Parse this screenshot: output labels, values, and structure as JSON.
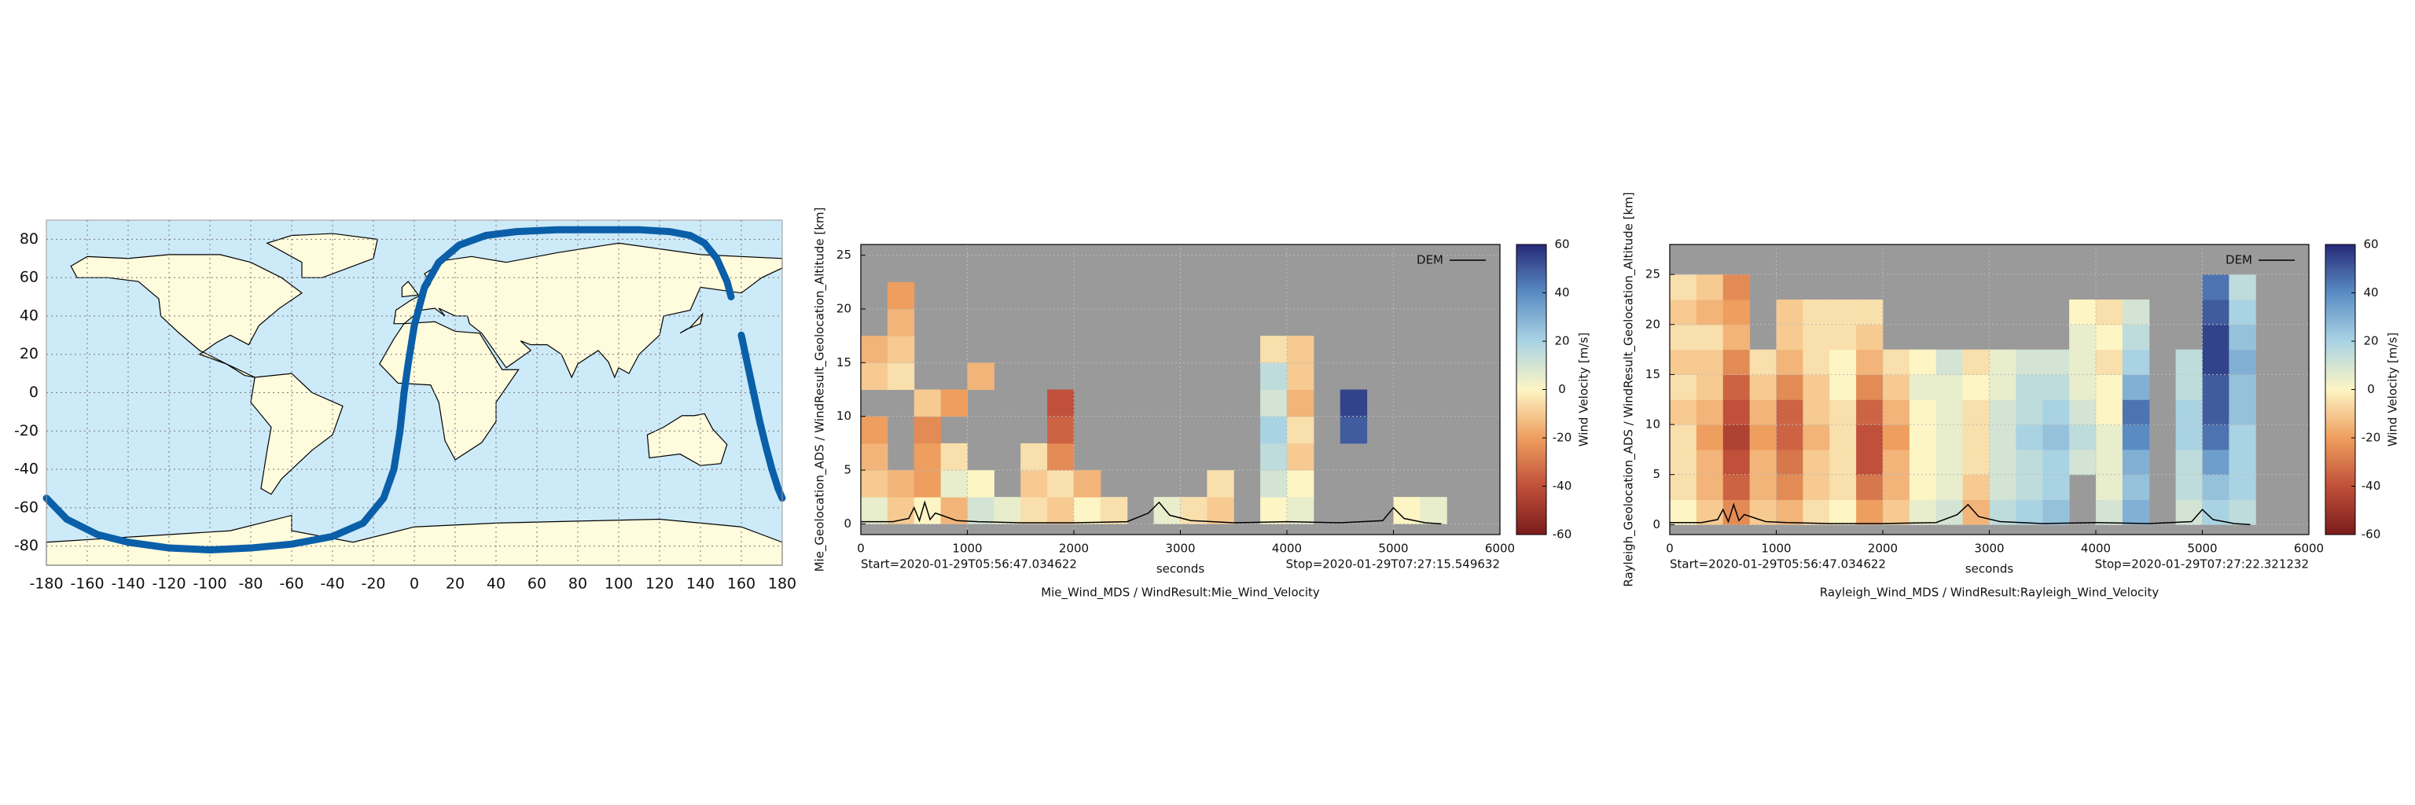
{
  "chart_data": [
    {
      "type": "map",
      "color": "#0a5fa8",
      "x": [
        -180,
        -170,
        -155,
        -140,
        -120,
        -100,
        -80,
        -60,
        -40,
        -25,
        -15,
        -10,
        -7,
        -5,
        -3,
        0,
        5,
        12,
        22,
        35,
        50,
        70,
        90,
        110,
        125,
        135,
        142,
        148,
        153,
        155,
        null,
        160,
        163,
        166,
        169,
        172,
        175,
        178,
        180
      ],
      "y": [
        -55,
        -66,
        -74,
        -78,
        -81,
        -82,
        -81,
        -79,
        -75,
        -68,
        -55,
        -40,
        -20,
        0,
        15,
        35,
        55,
        68,
        77,
        82,
        84,
        85,
        85,
        85,
        84,
        82,
        78,
        70,
        58,
        50,
        null,
        30,
        15,
        0,
        -15,
        -28,
        -40,
        -50,
        -55
      ],
      "xlim": [
        -180,
        180
      ],
      "ylim": [
        -90,
        90
      ],
      "xticks": [
        -180,
        -160,
        -140,
        -120,
        -100,
        -80,
        -60,
        -40,
        -20,
        0,
        20,
        40,
        60,
        80,
        100,
        120,
        140,
        160,
        180
      ],
      "yticks": [
        -80,
        -60,
        -40,
        -20,
        0,
        20,
        40,
        60,
        80
      ],
      "grid": true
    },
    {
      "type": "heatmap",
      "title": "Mie_Wind_MDS / WindResult:Mie_Wind_Velocity",
      "xlabel": "seconds",
      "ylabel": "Mie_Geolocation_ADS / WindResult_Geolocation_Altitude [km]",
      "annotations": [
        "Start=2020-01-29T05:56:47.034622",
        "Stop=2020-01-29T07:27:15.549632"
      ],
      "colorbar_label": "Wind Velocity [m/s]",
      "xlim": [
        0,
        6000
      ],
      "ylim": [
        -1,
        26
      ],
      "xticks": [
        0,
        1000,
        2000,
        3000,
        4000,
        5000,
        6000
      ],
      "yticks": [
        0,
        5,
        10,
        15,
        20,
        25
      ],
      "clim": [
        -60,
        60
      ],
      "cticks": [
        -60,
        -40,
        -20,
        0,
        20,
        40,
        60
      ],
      "colormap": [
        "#7a1c1c",
        "#c0503a",
        "#ee9e5e",
        "#fdf5c4",
        "#a9d3e3",
        "#5a8cc4",
        "#262a78"
      ],
      "x_edges": [
        0,
        250,
        500,
        750,
        1000,
        1250,
        1500,
        1750,
        2000,
        2250,
        2500,
        2750,
        3000,
        3250,
        3500,
        3750,
        4000,
        4250,
        4500,
        4750,
        5000,
        5250,
        5500
      ],
      "y_edges": [
        0,
        2.5,
        5,
        7.5,
        10,
        12.5,
        15,
        17.5,
        20,
        22.5
      ],
      "z": [
        [
          5,
          -10,
          0,
          -15,
          10,
          5,
          -5,
          -10,
          0,
          -5,
          null,
          5,
          -5,
          -10,
          null,
          0,
          5,
          null,
          null,
          null,
          0,
          5
        ],
        [
          -10,
          -15,
          -20,
          5,
          0,
          null,
          -10,
          -5,
          -15,
          null,
          null,
          null,
          null,
          -5,
          null,
          10,
          0,
          null,
          null,
          null,
          null,
          null
        ],
        [
          -15,
          null,
          -20,
          -5,
          null,
          null,
          -5,
          -25,
          null,
          null,
          null,
          null,
          null,
          null,
          null,
          15,
          -10,
          null,
          null,
          null,
          null,
          null
        ],
        [
          -20,
          null,
          -25,
          null,
          null,
          null,
          null,
          -35,
          null,
          null,
          null,
          null,
          null,
          null,
          null,
          20,
          -5,
          null,
          50,
          null,
          null,
          null
        ],
        [
          null,
          null,
          -10,
          -20,
          null,
          null,
          null,
          -40,
          null,
          null,
          null,
          null,
          null,
          null,
          null,
          10,
          -15,
          null,
          55,
          null,
          null,
          null
        ],
        [
          -10,
          -5,
          null,
          null,
          -15,
          null,
          null,
          null,
          null,
          null,
          null,
          null,
          null,
          null,
          null,
          15,
          -10,
          null,
          null,
          null,
          null,
          null
        ],
        [
          -15,
          -10,
          null,
          null,
          null,
          null,
          null,
          null,
          null,
          null,
          null,
          null,
          null,
          null,
          null,
          -5,
          -10,
          null,
          null,
          null,
          null,
          null
        ],
        [
          null,
          -15,
          null,
          null,
          null,
          null,
          null,
          null,
          null,
          null,
          null,
          null,
          null,
          null,
          null,
          null,
          null,
          null,
          null,
          null,
          null,
          null
        ],
        [
          null,
          -20,
          null,
          null,
          null,
          null,
          null,
          null,
          null,
          null,
          null,
          null,
          null,
          null,
          null,
          null,
          null,
          null,
          null,
          null,
          null,
          null
        ]
      ],
      "dem": {
        "name": "DEM",
        "color": "#000000",
        "x": [
          0,
          300,
          450,
          500,
          550,
          600,
          650,
          700,
          900,
          1100,
          1500,
          2000,
          2500,
          2700,
          2800,
          2900,
          3100,
          3500,
          4000,
          4500,
          4900,
          5000,
          5100,
          5300,
          5450
        ],
        "y": [
          0.2,
          0.2,
          0.5,
          1.5,
          0.3,
          2,
          0.4,
          1,
          0.3,
          0.2,
          0.1,
          0.1,
          0.2,
          1,
          2,
          0.8,
          0.3,
          0.1,
          0.2,
          0.1,
          0.3,
          1.5,
          0.5,
          0.1,
          0
        ]
      }
    },
    {
      "type": "heatmap",
      "title": "Rayleigh_Wind_MDS / WindResult:Rayleigh_Wind_Velocity",
      "xlabel": "seconds",
      "ylabel": "Rayleigh_Geolocation_ADS / WindResult_Geolocation_Altitude [km]",
      "annotations": [
        "Start=2020-01-29T05:56:47.034622",
        "Stop=2020-01-29T07:27:22.321232"
      ],
      "colorbar_label": "Wind Velocity [m/s]",
      "xlim": [
        0,
        6000
      ],
      "ylim": [
        -1,
        28
      ],
      "xticks": [
        0,
        1000,
        2000,
        3000,
        4000,
        5000,
        6000
      ],
      "yticks": [
        0,
        5,
        10,
        15,
        20,
        25
      ],
      "clim": [
        -60,
        60
      ],
      "cticks": [
        -60,
        -40,
        -20,
        0,
        20,
        40,
        60
      ],
      "colormap": [
        "#7a1c1c",
        "#c0503a",
        "#ee9e5e",
        "#fdf5c4",
        "#a9d3e3",
        "#5a8cc4",
        "#262a78"
      ],
      "x_edges": [
        0,
        250,
        500,
        750,
        1000,
        1250,
        1500,
        1750,
        2000,
        2250,
        2500,
        2750,
        3000,
        3250,
        3500,
        3750,
        4000,
        4250,
        4500,
        4750,
        5000,
        5250,
        5500
      ],
      "y_edges": [
        0,
        2.5,
        5,
        7.5,
        10,
        12.5,
        15,
        17.5,
        20,
        22.5,
        25
      ],
      "z": [
        [
          0,
          -10,
          -25,
          -10,
          -15,
          -5,
          0,
          -20,
          -10,
          5,
          10,
          -15,
          15,
          20,
          25,
          null,
          10,
          30,
          null,
          10,
          20,
          15
        ],
        [
          -5,
          -15,
          -35,
          -15,
          -25,
          -10,
          -5,
          -30,
          -15,
          0,
          5,
          -10,
          10,
          15,
          20,
          null,
          5,
          25,
          null,
          15,
          25,
          20
        ],
        [
          -5,
          -15,
          -40,
          -15,
          -30,
          -10,
          -5,
          -40,
          -15,
          0,
          5,
          -5,
          10,
          15,
          20,
          10,
          5,
          30,
          null,
          15,
          35,
          20
        ],
        [
          -5,
          -20,
          -45,
          -20,
          -35,
          -15,
          -5,
          -40,
          -20,
          0,
          5,
          -5,
          10,
          20,
          25,
          15,
          5,
          40,
          null,
          20,
          45,
          20
        ],
        [
          -10,
          -15,
          -40,
          -15,
          -35,
          -10,
          -5,
          -35,
          -15,
          0,
          5,
          -5,
          10,
          15,
          20,
          10,
          0,
          45,
          null,
          20,
          50,
          25
        ],
        [
          -5,
          -10,
          -35,
          -10,
          -25,
          -10,
          0,
          -25,
          -10,
          5,
          5,
          0,
          5,
          15,
          15,
          5,
          0,
          30,
          null,
          15,
          50,
          25
        ],
        [
          -10,
          -10,
          -25,
          -5,
          -15,
          -5,
          0,
          -15,
          -5,
          0,
          10,
          -5,
          5,
          10,
          10,
          5,
          -5,
          20,
          null,
          15,
          55,
          30
        ],
        [
          -5,
          -5,
          -15,
          null,
          -10,
          -5,
          -5,
          -10,
          null,
          null,
          null,
          null,
          null,
          null,
          null,
          5,
          0,
          15,
          null,
          null,
          55,
          25
        ],
        [
          -10,
          -15,
          -20,
          null,
          -10,
          -5,
          -5,
          -5,
          null,
          null,
          null,
          null,
          null,
          null,
          null,
          0,
          -5,
          10,
          null,
          null,
          50,
          20
        ],
        [
          -5,
          -10,
          -25,
          null,
          null,
          null,
          null,
          null,
          null,
          null,
          null,
          null,
          null,
          null,
          null,
          null,
          null,
          null,
          null,
          null,
          45,
          15
        ]
      ],
      "dem": {
        "name": "DEM",
        "color": "#000000",
        "x": [
          0,
          300,
          450,
          500,
          550,
          600,
          650,
          700,
          900,
          1100,
          1500,
          2000,
          2500,
          2700,
          2800,
          2900,
          3100,
          3500,
          4000,
          4500,
          4900,
          5000,
          5100,
          5300,
          5450
        ],
        "y": [
          0.2,
          0.2,
          0.5,
          1.5,
          0.3,
          2,
          0.4,
          1,
          0.3,
          0.2,
          0.1,
          0.1,
          0.2,
          1,
          2,
          0.8,
          0.3,
          0.1,
          0.2,
          0.1,
          0.3,
          1.5,
          0.5,
          0.1,
          0
        ]
      }
    }
  ]
}
